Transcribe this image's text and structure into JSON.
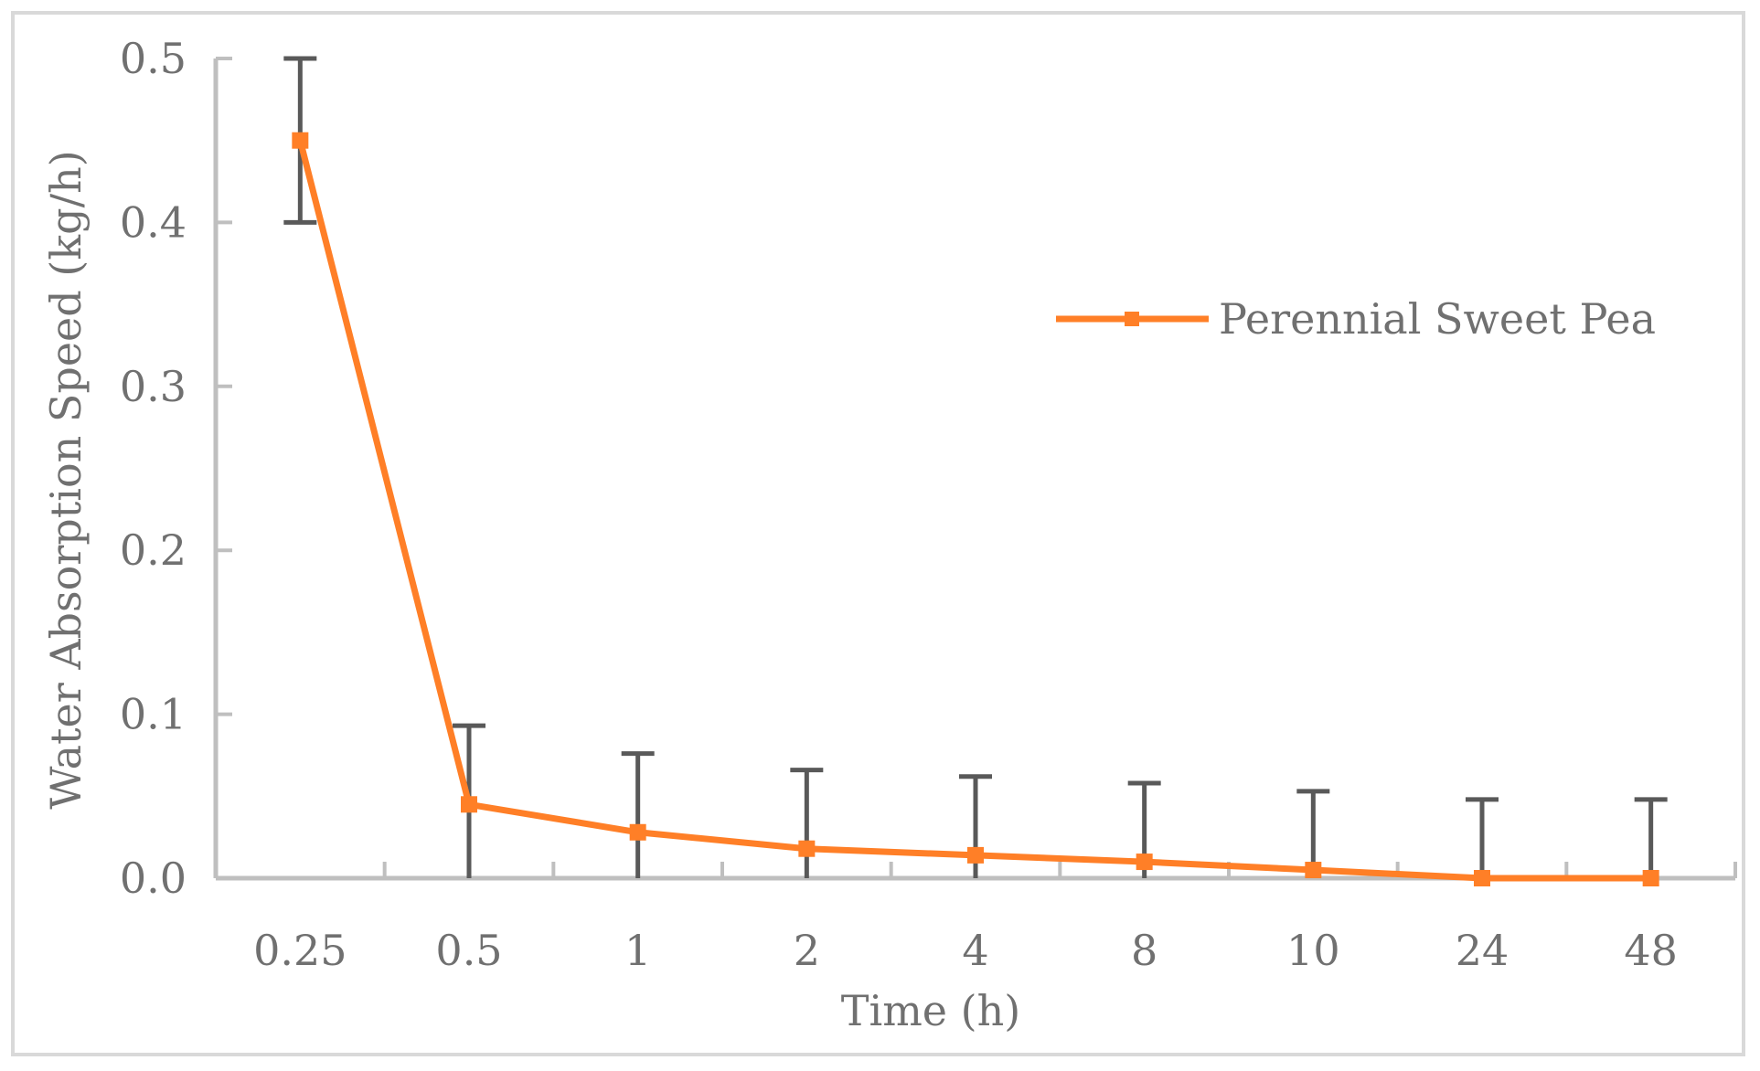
{
  "chart_data": {
    "type": "line",
    "title": "",
    "xlabel": "Time (h)",
    "ylabel": "Water Absorption Speed (kg/h)",
    "categories": [
      "0.25",
      "0.5",
      "1",
      "2",
      "4",
      "8",
      "10",
      "24",
      "48"
    ],
    "ylim": [
      0,
      0.5
    ],
    "yticks": [
      "0.0",
      "0.1",
      "0.2",
      "0.3",
      "0.4",
      "0.5"
    ],
    "ytick_values": [
      0,
      0.1,
      0.2,
      0.3,
      0.4,
      0.5
    ],
    "grid": false,
    "legend_position": "right",
    "series": [
      {
        "name": "Perennial Sweet Pea",
        "color": "#ff7f27",
        "values": [
          0.45,
          0.045,
          0.028,
          0.018,
          0.014,
          0.01,
          0.005,
          0.0,
          0.0
        ],
        "error_upper": [
          0.05,
          0.048,
          0.048,
          0.048,
          0.048,
          0.048,
          0.048,
          0.048,
          0.048
        ],
        "error_lower": [
          0.05,
          0.045,
          0.028,
          0.018,
          0.014,
          0.01,
          0.005,
          0.0,
          0.0
        ]
      }
    ],
    "axis_color": "#bfbfbf",
    "errorbar_color": "#595959"
  }
}
